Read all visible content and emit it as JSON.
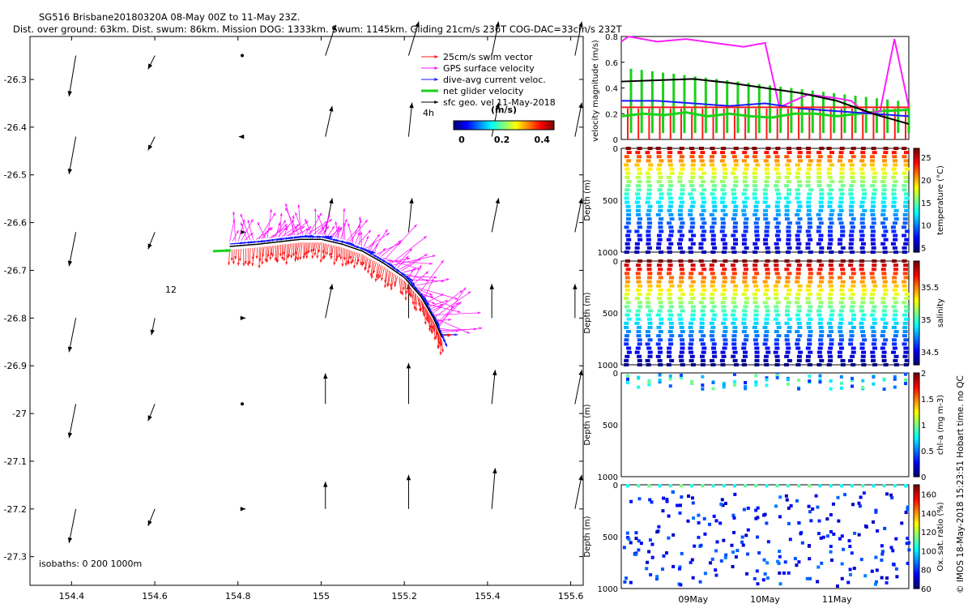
{
  "header": {
    "title": "SG516 Brisbane20180320A 08-May 00Z to 11-May 23Z.",
    "subtitle": "Dist. over ground: 63km. Dist. swum: 86km. Mission DOG: 1333km. Swum: 1145km. Gliding 21cm/s 236T COG-DAC=33cm/s 232T"
  },
  "side_note": "© IMOS 18-May-2018 15:23:51 Hobart time. no QC",
  "colors": {
    "swim": "#ff1a1a",
    "gps": "#ff1aff",
    "dac": "#1a1aff",
    "net": "#1ad21a",
    "geo": "#000000"
  },
  "chart_data": [
    {
      "type": "scatter",
      "name": "map",
      "xlabel": "",
      "ylabel": "",
      "xlim": [
        154.3,
        155.63
      ],
      "ylim": [
        -27.36,
        -26.21
      ],
      "xticks": [
        154.4,
        154.6,
        154.8,
        155,
        155.2,
        155.4,
        155.6
      ],
      "xtick_labels": [
        "154.4",
        "154.6",
        "154.8",
        "155",
        "155.2",
        "155.4",
        "155.6"
      ],
      "yticks": [
        -26.3,
        -26.4,
        -26.5,
        -26.6,
        -26.7,
        -26.8,
        -26.9,
        -27,
        -27.1,
        -27.2,
        -27.3
      ],
      "ytick_labels": [
        "-26.3",
        "-26.4",
        "-26.5",
        "-26.6",
        "-26.7",
        "-26.8",
        "-26.9",
        "-27",
        "-27.1",
        "-27.2",
        "-27.3"
      ],
      "legend": {
        "placement": "top-right",
        "entries": [
          "25cm/s swim vector",
          "GPS surface velocity",
          "dive-avg current veloc.",
          "net glider velocity",
          "sfc geo. vel 11-May-2018"
        ]
      },
      "annotations": {
        "time_marker": "4h",
        "isobath_label": "12",
        "isobaths": "isobaths: 0   200   1000m"
      },
      "colorbar": {
        "label": "(m/s)",
        "ticks": [
          0,
          0.2,
          0.4
        ],
        "tick_labels": [
          "0",
          "0.2",
          "0.4"
        ],
        "range": [
          0,
          0.5
        ]
      },
      "track": {
        "lon": [
          154.78,
          154.85,
          154.9,
          154.95,
          155.0,
          155.05,
          155.1,
          155.15,
          155.2,
          155.24,
          155.27,
          155.29
        ],
        "lat": [
          -26.65,
          -26.645,
          -26.64,
          -26.635,
          -26.635,
          -26.645,
          -26.66,
          -26.685,
          -26.715,
          -26.755,
          -26.8,
          -26.84
        ],
        "net_lon_start": 154.74,
        "net_lat_start": -26.66
      },
      "geo_vectors": {
        "lon": [
          154.42,
          154.61,
          154.82,
          155.02,
          155.22,
          155.42,
          155.62
        ],
        "lat": [
          -26.25,
          -26.42,
          -26.62,
          -26.8,
          -26.98,
          -27.2
        ],
        "u": [
          [
            -0.02,
            -0.02,
            0.0,
            0.03,
            0.03,
            0.02,
            0.02
          ],
          [
            -0.02,
            -0.02,
            -0.01,
            0.02,
            0.01,
            0.02,
            0.02
          ],
          [
            -0.02,
            -0.02,
            0.01,
            0.02,
            0.01,
            0.02,
            0.02
          ],
          [
            -0.02,
            -0.01,
            0.01,
            0.02,
            0.0,
            0.0,
            0.0
          ],
          [
            -0.02,
            -0.02,
            0.0,
            0.0,
            0.0,
            0.01,
            0.02
          ],
          [
            -0.02,
            -0.02,
            0.01,
            0.0,
            0.0,
            0.01,
            0.02
          ]
        ],
        "v": [
          [
            -0.12,
            -0.04,
            0.0,
            0.09,
            0.1,
            0.1,
            0.1
          ],
          [
            -0.11,
            -0.04,
            0.0,
            0.09,
            0.1,
            0.1,
            0.1
          ],
          [
            -0.1,
            -0.05,
            0.0,
            0.1,
            0.1,
            0.1,
            0.1
          ],
          [
            -0.1,
            -0.05,
            0.0,
            0.1,
            0.1,
            0.1,
            0.1
          ],
          [
            -0.1,
            -0.05,
            0.0,
            0.09,
            0.12,
            0.1,
            0.1
          ],
          [
            -0.1,
            -0.05,
            0.0,
            0.08,
            0.1,
            0.12,
            0.1
          ]
        ]
      }
    },
    {
      "type": "line",
      "name": "velocity",
      "ylabel": "velocity magnitude (m/s)",
      "xlim": [
        0,
        4
      ],
      "ylim": [
        0,
        0.8
      ],
      "yticks": [
        0,
        0.2,
        0.4,
        0.6,
        0.8
      ],
      "ytick_labels": [
        "0",
        "0.2",
        "0.4",
        "0.6",
        "0.8"
      ],
      "series": [
        {
          "name": "net glider velocity",
          "color": "#1ad21a",
          "x": [
            0,
            0.3,
            0.6,
            0.9,
            1.2,
            1.5,
            1.8,
            2.1,
            2.4,
            2.7,
            3.0,
            3.3,
            3.6,
            4.0
          ],
          "y": [
            0.18,
            0.2,
            0.19,
            0.21,
            0.18,
            0.2,
            0.18,
            0.17,
            0.2,
            0.2,
            0.18,
            0.2,
            0.22,
            0.23
          ]
        },
        {
          "name": "GPS surface velocity",
          "color": "#ff1aff",
          "x": [
            0,
            0.1,
            0.5,
            0.9,
            1.3,
            1.7,
            2.0,
            2.2,
            2.6,
            3.0,
            3.2,
            3.4,
            3.6,
            3.8,
            4.0
          ],
          "y": [
            0.76,
            0.8,
            0.76,
            0.78,
            0.75,
            0.72,
            0.75,
            0.25,
            0.35,
            0.32,
            0.3,
            0.2,
            0.22,
            0.78,
            0.25
          ]
        },
        {
          "name": "dive-avg current veloc.",
          "color": "#1a1aff",
          "x": [
            0,
            0.5,
            1.0,
            1.5,
            2.0,
            2.5,
            3.0,
            3.5,
            4.0
          ],
          "y": [
            0.3,
            0.3,
            0.28,
            0.26,
            0.28,
            0.24,
            0.22,
            0.2,
            0.18
          ]
        },
        {
          "name": "25cm/s swim vector",
          "color": "#ff1a1a",
          "x": [
            0,
            4
          ],
          "y": [
            0.25,
            0.25
          ]
        },
        {
          "name": "sfc geo. vel",
          "color": "#000000",
          "x": [
            0,
            0.5,
            1.0,
            1.5,
            2.0,
            2.5,
            3.0,
            3.5,
            4.0
          ],
          "y": [
            0.45,
            0.46,
            0.47,
            0.44,
            0.4,
            0.36,
            0.3,
            0.2,
            0.12
          ]
        }
      ]
    },
    {
      "type": "scatter",
      "name": "temperature",
      "ylabel": "Depth (m)",
      "cbar_label": "temperature (°C)",
      "ylim": [
        1000,
        0
      ],
      "yticks": [
        0,
        500,
        1000
      ],
      "ytick_labels": [
        "0",
        "500",
        "1000"
      ],
      "cbar_range": [
        4,
        27
      ],
      "cbar_ticks": [
        5,
        10,
        15,
        20,
        25
      ],
      "cbar_tick_labels": [
        "5",
        "10",
        "15",
        "20",
        "25"
      ],
      "profiles": 27
    },
    {
      "type": "scatter",
      "name": "salinity",
      "ylabel": "Depth (m)",
      "cbar_label": "salinity",
      "ylim": [
        1000,
        0
      ],
      "yticks": [
        0,
        500,
        1000
      ],
      "ytick_labels": [
        "0",
        "500",
        "1000"
      ],
      "cbar_range": [
        34.3,
        35.9
      ],
      "cbar_ticks": [
        34.5,
        35,
        35.5
      ],
      "cbar_tick_labels": [
        "34.5",
        "35",
        "35.5"
      ],
      "profiles": 27
    },
    {
      "type": "scatter",
      "name": "chl",
      "ylabel": "Depth (m)",
      "cbar_label": "chl-a (mg m-3)",
      "ylim": [
        1000,
        0
      ],
      "yticks": [
        0,
        500,
        1000
      ],
      "ytick_labels": [
        "0",
        "500",
        "1000"
      ],
      "cbar_range": [
        0,
        2
      ],
      "cbar_ticks": [
        0,
        0.5,
        1,
        1.5,
        2
      ],
      "cbar_tick_labels": [
        "0",
        "0.5",
        "1",
        "1.5",
        "2"
      ],
      "profiles": 27
    },
    {
      "type": "scatter",
      "name": "oxygen",
      "ylabel": "Depth (m)",
      "cbar_label": "Ox. sat. ratio (%)",
      "ylim": [
        1000,
        0
      ],
      "yticks": [
        0,
        500,
        1000
      ],
      "ytick_labels": [
        "0",
        "500",
        "1000"
      ],
      "cbar_range": [
        60,
        170
      ],
      "cbar_ticks": [
        60,
        80,
        100,
        120,
        140,
        160
      ],
      "cbar_tick_labels": [
        "60",
        "80",
        "100",
        "120",
        "140",
        "160"
      ],
      "xticks": [
        1,
        2,
        3
      ],
      "xtick_labels": [
        "09May",
        "10May",
        "11May"
      ],
      "profiles": 27
    }
  ]
}
